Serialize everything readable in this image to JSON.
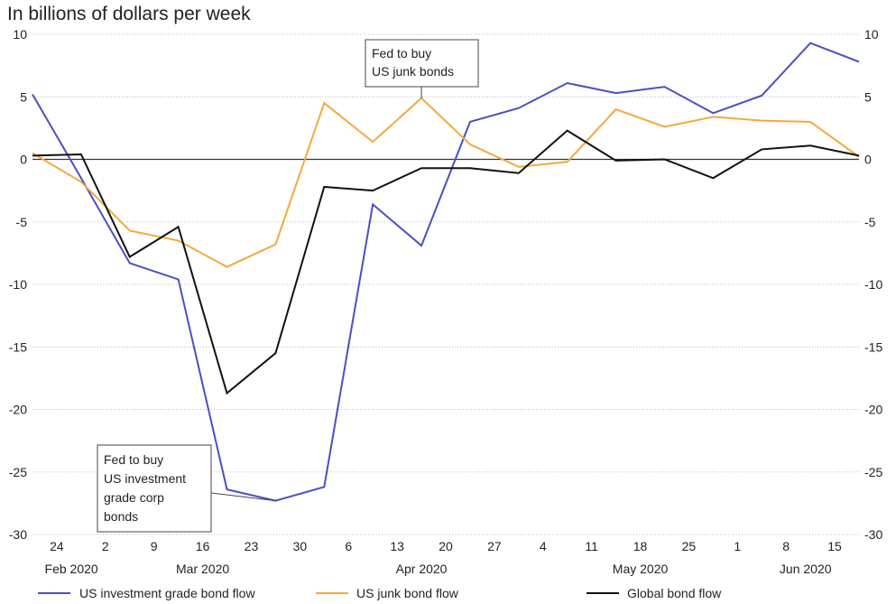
{
  "chart_data": {
    "type": "line",
    "title": "In billions of dollars per week",
    "ylim": [
      -30,
      10
    ],
    "yticks": [
      10,
      5,
      0,
      -5,
      -10,
      -15,
      -20,
      -25,
      -30
    ],
    "xlabels": [
      {
        "week": 0.5,
        "label": "24"
      },
      {
        "week": 1.5,
        "label": "2"
      },
      {
        "week": 2.5,
        "label": "9"
      },
      {
        "week": 3.5,
        "label": "16"
      },
      {
        "week": 4.5,
        "label": "23"
      },
      {
        "week": 5.5,
        "label": "30"
      },
      {
        "week": 6.5,
        "label": "6"
      },
      {
        "week": 7.5,
        "label": "13"
      },
      {
        "week": 8.5,
        "label": "20"
      },
      {
        "week": 9.5,
        "label": "27"
      },
      {
        "week": 10.5,
        "label": "4"
      },
      {
        "week": 11.5,
        "label": "11"
      },
      {
        "week": 12.5,
        "label": "18"
      },
      {
        "week": 13.5,
        "label": "25"
      },
      {
        "week": 14.5,
        "label": "1"
      },
      {
        "week": 15.5,
        "label": "8"
      },
      {
        "week": 16.5,
        "label": "15"
      }
    ],
    "month_labels": [
      {
        "week": 0.8,
        "label": "Feb 2020"
      },
      {
        "week": 3.5,
        "label": "Mar 2020"
      },
      {
        "week": 8.0,
        "label": "Apr 2020"
      },
      {
        "week": 12.5,
        "label": "May 2020"
      },
      {
        "week": 15.9,
        "label": "Jun 2020"
      }
    ],
    "x": [
      0,
      1,
      2,
      3,
      4,
      5,
      6,
      7,
      8,
      9,
      10,
      11,
      12,
      13,
      14,
      15,
      16,
      17
    ],
    "series": [
      {
        "name": "US investment grade bond flow",
        "color": "#4a4fc4",
        "values": [
          5.2,
          -1.5,
          -8.3,
          -9.6,
          -26.4,
          -27.3,
          -26.2,
          -3.6,
          -6.9,
          3.0,
          4.1,
          6.1,
          5.3,
          5.8,
          3.7,
          5.1,
          9.3,
          7.8
        ]
      },
      {
        "name": "US junk bond flow",
        "color": "#f4a93c",
        "values": [
          0.5,
          -1.8,
          -5.7,
          -6.5,
          -8.6,
          -6.8,
          4.5,
          1.4,
          4.9,
          1.2,
          -0.6,
          -0.2,
          4.0,
          2.6,
          3.4,
          3.1,
          3.0,
          0.2
        ]
      },
      {
        "name": "Global bond flow",
        "color": "#111111",
        "values": [
          0.3,
          0.4,
          -7.8,
          -5.4,
          -18.7,
          -15.5,
          -2.2,
          -2.5,
          -0.7,
          -0.7,
          -1.1,
          2.3,
          -0.1,
          0.0,
          -1.5,
          0.8,
          1.1,
          0.3
        ]
      }
    ],
    "annotations": [
      {
        "text": [
          "Fed to buy",
          "US junk bonds"
        ],
        "points_to_week": 8,
        "series": "US junk bond flow"
      },
      {
        "text": [
          "Fed to buy",
          "US investment",
          "grade corp",
          "bonds"
        ],
        "points_to_week": 5,
        "series": "US investment grade bond flow"
      }
    ],
    "grid": true,
    "legend_position": "bottom"
  }
}
